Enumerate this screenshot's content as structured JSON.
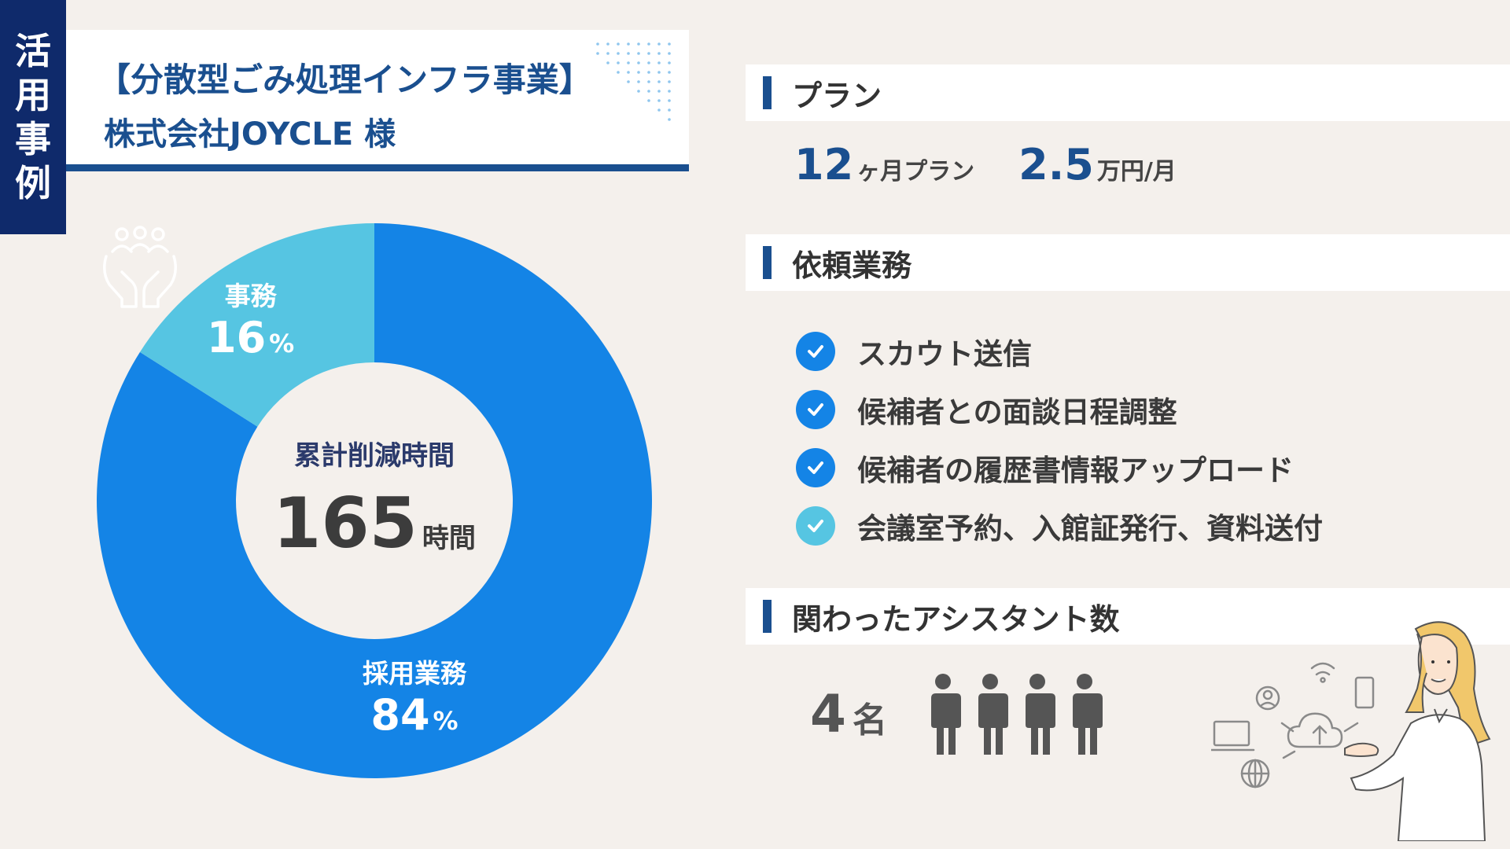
{
  "tag": {
    "chars": [
      "活",
      "用",
      "事",
      "例"
    ]
  },
  "header": {
    "title": "【分散型ごみ処理インフラ事業】",
    "client": "株式会社JOYCLE 様"
  },
  "donut": {
    "segments": [
      {
        "name": "事務",
        "value": "16",
        "unit": "%",
        "percent": 16,
        "color": "#56c5e2"
      },
      {
        "name": "採用業務",
        "value": "84",
        "unit": "%",
        "percent": 84,
        "color": "#1484e6"
      }
    ],
    "center_label": "累計削減時間",
    "center_value": "165",
    "center_unit": "時間",
    "icon": "team-hands-icon"
  },
  "plan": {
    "heading": "プラン",
    "months": "12",
    "months_unit": "ヶ月プラン",
    "price": "2.5",
    "price_unit": "万円/月"
  },
  "tasks": {
    "heading": "依頼業務",
    "items": [
      {
        "label": "スカウト送信",
        "icon": "check-circle-icon",
        "color": "#1484e6"
      },
      {
        "label": "候補者との面談日程調整",
        "icon": "check-circle-icon",
        "color": "#1484e6"
      },
      {
        "label": "候補者の履歴書情報アップロード",
        "icon": "check-circle-icon",
        "color": "#1484e6"
      },
      {
        "label": "会議室予約、入館証発行、資料送付",
        "icon": "check-circle-icon",
        "color": "#56c5e2"
      }
    ]
  },
  "assistants": {
    "heading": "関わったアシスタント数",
    "count": "4",
    "unit": "名",
    "icon": "person-icon"
  },
  "colors": {
    "navy": "#0f2a6b",
    "blue": "#1a4f8f",
    "donut_main": "#1484e6",
    "donut_sub": "#56c5e2",
    "background": "#f4f0ec"
  }
}
